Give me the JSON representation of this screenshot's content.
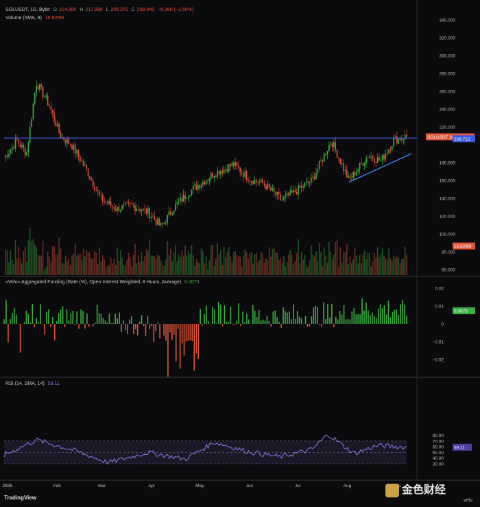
{
  "price_pane": {
    "symbol_text": "SOLUSDT, 1D, Bybit",
    "ohlc": {
      "o_label": "O",
      "o": "214.300",
      "h_label": "H",
      "h": "217.890",
      "l_label": "L",
      "l": "205.370",
      "c_label": "C",
      "c": "208.940",
      "change": "−5.360 (−2.50%)"
    },
    "volume_label": "Volume (SMA, 9)",
    "volume_value": "16.826M",
    "yticks": [
      340,
      320,
      300,
      280,
      260,
      240,
      220,
      180,
      160,
      140,
      120,
      100,
      80,
      60
    ],
    "ytick_labels": [
      "340.000",
      "320.000",
      "300.000",
      "280.000",
      "260.000",
      "240.000",
      "220.000",
      "180.000",
      "160.000",
      "140.000",
      "120.000",
      "100.000",
      "80.000",
      "60.000"
    ],
    "tags": [
      {
        "label": "SOLUSDT",
        "value": "208.940",
        "color": "#e0553b",
        "price": 208.94
      },
      {
        "label": "",
        "value": "206.712",
        "color": "#3d5be0",
        "price": 206.712
      },
      {
        "label": "",
        "value": "16.826M",
        "color": "#e0553b",
        "price": 86.5
      }
    ],
    "colors": {
      "up": "#3cb043",
      "down": "#e0553b",
      "hline": "#3d5be0",
      "trendline": "#3d8ef0"
    }
  },
  "funding_pane": {
    "label": "«Velo» Aggregated Funding (Rate (%), Open Interest Weighted, 8 Hours, Average)",
    "value": "0.0073",
    "yticks": [
      0.02,
      0.01,
      0,
      -0.01,
      -0.02
    ],
    "ytick_labels": [
      "0.02",
      "0.01",
      "0",
      "−0.01",
      "−0.02"
    ],
    "tag": "0.0073"
  },
  "rsi_pane": {
    "label": "RSI (14, SMA, 14)",
    "value": "59.11",
    "yticks": [
      80,
      70,
      60,
      50,
      40,
      30
    ],
    "ytick_labels": [
      "80.00",
      "70.00",
      "60.00",
      "50.00",
      "40.00",
      "30.00"
    ],
    "tag": "59.11",
    "color": "#8f7be0"
  },
  "xaxis": {
    "labels": [
      "2025",
      "Feb",
      "Mar",
      "Apr",
      "May",
      "Jun",
      "Jul",
      "Aug",
      "Sep"
    ]
  },
  "footer": {
    "tv_logo": "TradingView",
    "watermark": "金色财经",
    "velo": "velo"
  },
  "chart_data": [
    {
      "type": "line",
      "title": "SOLUSDT, 1D, Bybit",
      "series": [
        {
          "name": "SOLUSDT",
          "x": [
            "2024-12-30",
            "2025-01-07",
            "2025-01-13",
            "2025-01-19",
            "2025-01-27",
            "2025-02-03",
            "2025-02-10",
            "2025-02-20",
            "2025-02-28",
            "2025-03-10",
            "2025-03-20",
            "2025-03-30",
            "2025-04-07",
            "2025-04-15",
            "2025-04-25",
            "2025-05-10",
            "2025-05-22",
            "2025-06-01",
            "2025-06-10",
            "2025-06-21",
            "2025-06-30",
            "2025-07-10",
            "2025-07-22",
            "2025-08-02",
            "2025-08-14",
            "2025-08-22",
            "2025-08-30",
            "2025-09-06"
          ],
          "values": [
            185,
            205,
            190,
            270,
            245,
            210,
            200,
            170,
            140,
            128,
            132,
            124,
            108,
            130,
            148,
            168,
            178,
            162,
            156,
            138,
            148,
            160,
            205,
            160,
            188,
            182,
            205,
            209
          ]
        }
      ],
      "horizontal_line": 206.712,
      "trendline": {
        "from": [
          "2025-08-02",
          158
        ],
        "to": [
          "2025-09-10",
          190
        ]
      },
      "ylim": [
        60,
        345
      ]
    },
    {
      "type": "bar",
      "title": "Volume (SMA, 9)",
      "last": "16.826M"
    },
    {
      "type": "bar",
      "title": "«Velo» Aggregated Funding (Rate (%), Open Interest Weighted, 8 Hours, Average)",
      "x": [
        "2025-01",
        "2025-02",
        "2025-03",
        "2025-04",
        "2025-05",
        "2025-06",
        "2025-07",
        "2025-08",
        "2025-09"
      ],
      "values": [
        0.005,
        0.003,
        -0.004,
        -0.012,
        0.006,
        0.004,
        0.005,
        0.011,
        0.0073
      ],
      "ylim": [
        -0.025,
        0.025
      ]
    },
    {
      "type": "line",
      "title": "RSI (14, SMA, 14)",
      "x": [
        "2024-12-30",
        "2025-01-19",
        "2025-02-10",
        "2025-03-05",
        "2025-03-30",
        "2025-04-22",
        "2025-05-10",
        "2025-05-30",
        "2025-06-20",
        "2025-07-10",
        "2025-07-20",
        "2025-08-05",
        "2025-08-20",
        "2025-09-06"
      ],
      "values": [
        45,
        72,
        55,
        32,
        50,
        38,
        68,
        52,
        42,
        55,
        82,
        48,
        62,
        59.11
      ],
      "ylim": [
        25,
        85
      ]
    }
  ]
}
